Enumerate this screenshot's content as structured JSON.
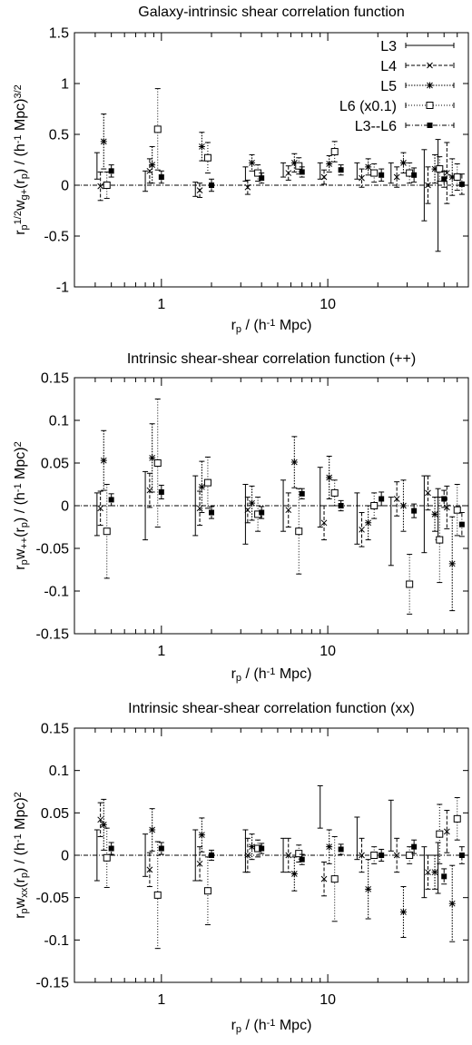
{
  "chart_data": [
    {
      "type": "scatter",
      "title": "Galaxy-intrinsic shear correlation function",
      "xlabel": "r_p / (h^-1 Mpc)",
      "ylabel": "r_p^1/2 w_g+(r_p) / (h^-1 Mpc)^3/2",
      "xscale": "log",
      "xlim": [
        0.3,
        70
      ],
      "ylim": [
        -1,
        1.5
      ],
      "xticks": [
        1,
        10
      ],
      "xtick_labels": [
        "1",
        "10"
      ],
      "yticks": [
        -1,
        -0.5,
        0,
        0.5,
        1,
        1.5
      ],
      "ytick_labels": [
        "-1",
        "-0.5",
        "0",
        "0.5",
        "1",
        "1.5"
      ],
      "legend_position": "top-right",
      "zero_line": true,
      "series": [
        {
          "name": "L3",
          "marker": "none",
          "line": "solid",
          "points": [
            [
              0.41,
              0.19,
              0.13
            ],
            [
              0.8,
              0.04,
              0.1
            ],
            [
              1.6,
              -0.04,
              0.07
            ],
            [
              3.2,
              0.11,
              0.07
            ],
            [
              5.4,
              0.15,
              0.07
            ],
            [
              9.0,
              0.14,
              0.08
            ],
            [
              15.0,
              0.14,
              0.08
            ],
            [
              24.0,
              0.12,
              0.1
            ],
            [
              38.0,
              0.0,
              0.35
            ],
            [
              46.0,
              -0.1,
              0.55
            ]
          ]
        },
        {
          "name": "L4",
          "marker": "x",
          "line": "dashed",
          "points": [
            [
              0.43,
              -0.01,
              0.14
            ],
            [
              0.85,
              0.14,
              0.12
            ],
            [
              1.7,
              -0.05,
              0.07
            ],
            [
              3.3,
              -0.02,
              0.07
            ],
            [
              5.8,
              0.12,
              0.07
            ],
            [
              9.5,
              0.08,
              0.07
            ],
            [
              16.0,
              0.07,
              0.09
            ],
            [
              26.0,
              0.08,
              0.1
            ],
            [
              40.0,
              0.0,
              0.18
            ],
            [
              52.0,
              0.12,
              0.3
            ]
          ]
        },
        {
          "name": "L5",
          "marker": "asterisk",
          "line": "dotted",
          "points": [
            [
              0.45,
              0.43,
              0.27
            ],
            [
              0.88,
              0.2,
              0.18
            ],
            [
              1.75,
              0.38,
              0.14
            ],
            [
              3.5,
              0.22,
              0.08
            ],
            [
              6.3,
              0.22,
              0.09
            ],
            [
              10.2,
              0.21,
              0.08
            ],
            [
              17.5,
              0.18,
              0.08
            ],
            [
              28.5,
              0.22,
              0.1
            ],
            [
              44.0,
              0.16,
              0.14
            ],
            [
              56.0,
              0.08,
              0.18
            ]
          ]
        },
        {
          "name": "L6 (x0.1)",
          "marker": "open-square",
          "line": "finely-dotted",
          "points": [
            [
              0.47,
              0.0,
              0.13
            ],
            [
              0.95,
              0.55,
              0.4
            ],
            [
              1.9,
              0.27,
              0.15
            ],
            [
              3.8,
              0.12,
              0.08
            ],
            [
              6.7,
              0.19,
              0.08
            ],
            [
              11.0,
              0.33,
              0.1
            ],
            [
              19.0,
              0.12,
              0.09
            ],
            [
              31.0,
              0.12,
              0.1
            ],
            [
              47.0,
              0.16,
              0.12
            ],
            [
              60.0,
              0.08,
              0.13
            ]
          ]
        },
        {
          "name": "L3--L6",
          "marker": "filled-square",
          "line": "dash-dot",
          "points": [
            [
              0.5,
              0.14,
              0.06
            ],
            [
              1.0,
              0.08,
              0.06
            ],
            [
              2.0,
              0.0,
              0.06
            ],
            [
              4.0,
              0.07,
              0.05
            ],
            [
              7.0,
              0.13,
              0.05
            ],
            [
              12.0,
              0.15,
              0.05
            ],
            [
              21.0,
              0.1,
              0.06
            ],
            [
              33.0,
              0.1,
              0.07
            ],
            [
              50.0,
              0.06,
              0.08
            ],
            [
              64.0,
              0.01,
              0.1
            ]
          ]
        }
      ]
    },
    {
      "type": "scatter",
      "title": "Intrinsic shear-shear correlation function (++)",
      "xlabel": "r_p / (h^-1 Mpc)",
      "ylabel": "r_p w_++(r_p) / (h^-1 Mpc)^2",
      "xscale": "log",
      "xlim": [
        0.3,
        70
      ],
      "ylim": [
        -0.15,
        0.15
      ],
      "xticks": [
        1,
        10
      ],
      "xtick_labels": [
        "1",
        "10"
      ],
      "yticks": [
        -0.15,
        -0.1,
        -0.05,
        0,
        0.05,
        0.1,
        0.15
      ],
      "ytick_labels": [
        "-0.15",
        "-0.1",
        "-0.05",
        "0",
        "0.05",
        "0.1",
        "0.15"
      ],
      "zero_line": true,
      "series": [
        {
          "name": "L3",
          "marker": "none",
          "line": "solid",
          "points": [
            [
              0.41,
              -0.01,
              0.025
            ],
            [
              0.8,
              0.0,
              0.04
            ],
            [
              1.6,
              0.0,
              0.035
            ],
            [
              3.2,
              -0.01,
              0.035
            ],
            [
              5.4,
              0.0,
              0.03
            ],
            [
              9.0,
              0.01,
              0.035
            ],
            [
              15.0,
              -0.015,
              0.03
            ],
            [
              24.0,
              -0.03,
              0.04
            ],
            [
              38.0,
              -0.01,
              0.045
            ],
            [
              46.0,
              -0.01,
              0.03
            ]
          ]
        },
        {
          "name": "L4",
          "marker": "x",
          "line": "dashed",
          "points": [
            [
              0.43,
              -0.003,
              0.02
            ],
            [
              0.85,
              0.018,
              0.02
            ],
            [
              1.7,
              -0.003,
              0.02
            ],
            [
              3.3,
              -0.005,
              0.015
            ],
            [
              5.8,
              -0.005,
              0.02
            ],
            [
              9.5,
              -0.02,
              0.02
            ],
            [
              16.0,
              -0.028,
              0.02
            ],
            [
              26.0,
              0.008,
              0.02
            ],
            [
              40.0,
              0.015,
              0.02
            ],
            [
              52.0,
              -0.002,
              0.025
            ]
          ]
        },
        {
          "name": "L5",
          "marker": "asterisk",
          "line": "dotted",
          "points": [
            [
              0.45,
              0.053,
              0.035
            ],
            [
              0.88,
              0.056,
              0.04
            ],
            [
              1.75,
              0.022,
              0.03
            ],
            [
              3.5,
              0.003,
              0.02
            ],
            [
              6.3,
              0.051,
              0.03
            ],
            [
              10.2,
              0.033,
              0.025
            ],
            [
              17.5,
              -0.02,
              0.02
            ],
            [
              28.5,
              0.0,
              0.03
            ],
            [
              44.0,
              -0.01,
              0.02
            ],
            [
              56.0,
              -0.068,
              0.055
            ]
          ]
        },
        {
          "name": "L6 (x0.1)",
          "marker": "open-square",
          "line": "finely-dotted",
          "points": [
            [
              0.47,
              -0.03,
              0.055
            ],
            [
              0.95,
              0.05,
              0.075
            ],
            [
              1.9,
              0.027,
              0.03
            ],
            [
              3.8,
              -0.01,
              0.02
            ],
            [
              6.7,
              -0.03,
              0.05
            ],
            [
              11.0,
              0.015,
              0.015
            ],
            [
              19.0,
              0.0,
              0.015
            ],
            [
              31.0,
              -0.092,
              0.035
            ],
            [
              47.0,
              -0.04,
              0.05
            ],
            [
              60.0,
              -0.005,
              0.03
            ]
          ]
        },
        {
          "name": "L3--L6",
          "marker": "filled-square",
          "line": "dash-dot",
          "points": [
            [
              0.5,
              0.007,
              0.007
            ],
            [
              1.0,
              0.016,
              0.008
            ],
            [
              2.0,
              -0.008,
              0.007
            ],
            [
              4.0,
              -0.008,
              0.007
            ],
            [
              7.0,
              0.014,
              0.006
            ],
            [
              12.0,
              0.0,
              0.006
            ],
            [
              21.0,
              0.008,
              0.008
            ],
            [
              33.0,
              -0.006,
              0.008
            ],
            [
              50.0,
              0.008,
              0.01
            ],
            [
              64.0,
              -0.022,
              0.014
            ]
          ]
        }
      ]
    },
    {
      "type": "scatter",
      "title": "Intrinsic shear-shear correlation function (xx)",
      "xlabel": "r_p / (h^-1 Mpc)",
      "ylabel": "r_p w_xx(r_p) / (h^-1 Mpc)^2",
      "xscale": "log",
      "xlim": [
        0.3,
        70
      ],
      "ylim": [
        -0.15,
        0.15
      ],
      "xticks": [
        1,
        10
      ],
      "xtick_labels": [
        "1",
        "10"
      ],
      "yticks": [
        -0.15,
        -0.1,
        -0.05,
        0,
        0.05,
        0.1,
        0.15
      ],
      "ytick_labels": [
        "-0.15",
        "-0.1",
        "-0.05",
        "0",
        "0.05",
        "0.1",
        "0.15"
      ],
      "zero_line": true,
      "series": [
        {
          "name": "L3",
          "marker": "none",
          "line": "solid",
          "points": [
            [
              0.41,
              0.0,
              0.03
            ],
            [
              0.8,
              0.0,
              0.025
            ],
            [
              1.6,
              0.0,
              0.03
            ],
            [
              3.2,
              0.005,
              0.025
            ],
            [
              5.4,
              0.0,
              0.02
            ],
            [
              9.0,
              0.057,
              0.025
            ],
            [
              15.0,
              0.02,
              0.025
            ],
            [
              24.0,
              0.035,
              0.03
            ],
            [
              38.0,
              -0.02,
              0.03
            ],
            [
              46.0,
              -0.015,
              0.03
            ]
          ]
        },
        {
          "name": "L4",
          "marker": "x",
          "line": "dashed",
          "points": [
            [
              0.43,
              0.042,
              0.02
            ],
            [
              0.85,
              -0.017,
              0.02
            ],
            [
              1.7,
              -0.01,
              0.02
            ],
            [
              3.3,
              0.0,
              0.02
            ],
            [
              5.8,
              0.0,
              0.02
            ],
            [
              9.5,
              -0.028,
              0.02
            ],
            [
              16.0,
              0.0,
              0.02
            ],
            [
              26.0,
              0.0,
              0.02
            ],
            [
              40.0,
              -0.02,
              0.02
            ],
            [
              52.0,
              0.028,
              0.025
            ]
          ]
        },
        {
          "name": "L5",
          "marker": "asterisk",
          "line": "dotted",
          "points": [
            [
              0.45,
              0.036,
              0.03
            ],
            [
              0.88,
              0.03,
              0.025
            ],
            [
              1.75,
              0.024,
              0.02
            ],
            [
              3.5,
              0.01,
              0.015
            ],
            [
              6.3,
              -0.022,
              0.02
            ],
            [
              10.2,
              0.01,
              0.02
            ],
            [
              17.5,
              -0.04,
              0.035
            ],
            [
              28.5,
              -0.067,
              0.03
            ],
            [
              44.0,
              -0.02,
              0.02
            ],
            [
              56.0,
              -0.057,
              0.045
            ]
          ]
        },
        {
          "name": "L6 (x0.1)",
          "marker": "open-square",
          "line": "finely-dotted",
          "points": [
            [
              0.47,
              -0.003,
              0.035
            ],
            [
              0.95,
              -0.047,
              0.063
            ],
            [
              1.9,
              -0.042,
              0.04
            ],
            [
              3.8,
              0.008,
              0.01
            ],
            [
              6.7,
              0.002,
              0.01
            ],
            [
              11.0,
              -0.028,
              0.05
            ],
            [
              19.0,
              0.0,
              0.01
            ],
            [
              31.0,
              0.0,
              0.01
            ],
            [
              47.0,
              0.025,
              0.035
            ],
            [
              60.0,
              0.043,
              0.025
            ]
          ]
        },
        {
          "name": "L3--L6",
          "marker": "filled-square",
          "line": "dash-dot",
          "points": [
            [
              0.5,
              0.008,
              0.007
            ],
            [
              1.0,
              0.008,
              0.007
            ],
            [
              2.0,
              0.0,
              0.006
            ],
            [
              4.0,
              0.008,
              0.006
            ],
            [
              7.0,
              -0.005,
              0.006
            ],
            [
              12.0,
              0.007,
              0.006
            ],
            [
              21.0,
              0.0,
              0.007
            ],
            [
              33.0,
              0.01,
              0.008
            ],
            [
              50.0,
              -0.025,
              0.009
            ],
            [
              64.0,
              0.0,
              0.01
            ]
          ]
        }
      ]
    }
  ]
}
